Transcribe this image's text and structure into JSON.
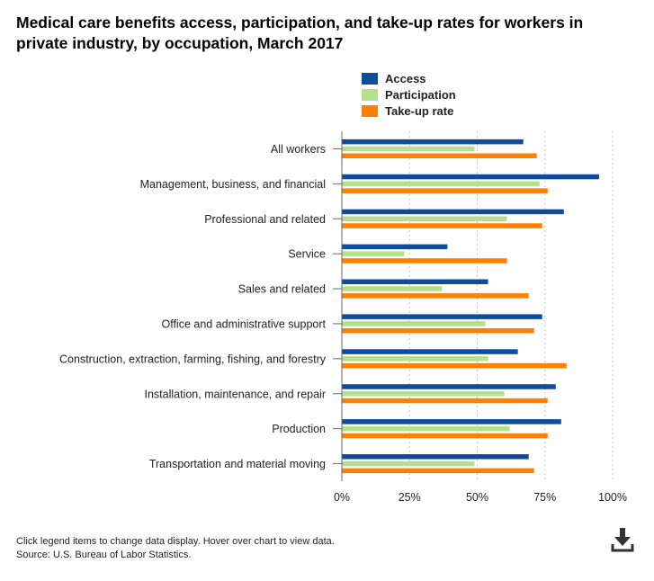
{
  "title": "Medical care benefits access, participation, and take-up rates for workers in private industry, by occupation, March 2017",
  "legend": [
    {
      "label": "Access",
      "color": "#0e4d9e"
    },
    {
      "label": "Participation",
      "color": "#b4df8c"
    },
    {
      "label": "Take-up rate",
      "color": "#ff7f00"
    }
  ],
  "chart_data": {
    "type": "bar",
    "orientation": "horizontal",
    "categories": [
      "All workers",
      "Management, business, and financial",
      "Professional and related",
      "Service",
      "Sales and related",
      "Office and administrative support",
      "Construction, extraction, farming, fishing, and forestry",
      "Installation, maintenance, and repair",
      "Production",
      "Transportation and material moving"
    ],
    "series": [
      {
        "name": "Access",
        "values": [
          67,
          95,
          82,
          39,
          54,
          74,
          65,
          79,
          81,
          69
        ]
      },
      {
        "name": "Participation",
        "values": [
          49,
          73,
          61,
          23,
          37,
          53,
          54,
          60,
          62,
          49
        ]
      },
      {
        "name": "Take-up rate",
        "values": [
          72,
          76,
          74,
          61,
          69,
          71,
          83,
          76,
          76,
          71
        ]
      }
    ],
    "xlim": [
      0,
      100
    ],
    "xticks": [
      "0%",
      "25%",
      "50%",
      "75%",
      "100%"
    ],
    "xlabel": "",
    "ylabel": "",
    "grid": true
  },
  "footer": {
    "line1": "Click legend items to change data display. Hover over chart to view data.",
    "line2": "Source: U.S. Bureau of Labor Statistics."
  }
}
